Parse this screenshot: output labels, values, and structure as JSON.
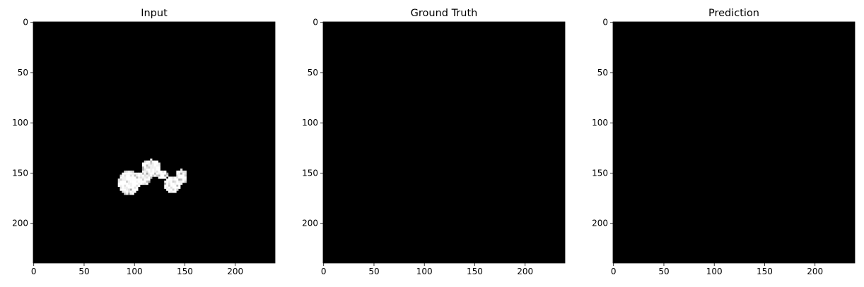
{
  "figure": {
    "background": "#ffffff",
    "panel_fill": "#000000",
    "panels": [
      {
        "title": "Input",
        "has_blob": true
      },
      {
        "title": "Ground Truth",
        "has_blob": false
      },
      {
        "title": "Prediction",
        "has_blob": false
      }
    ],
    "x_ticks": [
      {
        "value": 0,
        "label": "0"
      },
      {
        "value": 50,
        "label": "50"
      },
      {
        "value": 100,
        "label": "100"
      },
      {
        "value": 150,
        "label": "150"
      },
      {
        "value": 200,
        "label": "200"
      }
    ],
    "y_ticks": [
      {
        "value": 0,
        "label": "0"
      },
      {
        "value": 50,
        "label": "50"
      },
      {
        "value": 100,
        "label": "100"
      },
      {
        "value": 150,
        "label": "150"
      },
      {
        "value": 200,
        "label": "200"
      }
    ],
    "image_extent": [
      0,
      240
    ],
    "blob_colors": [
      "#ffffff",
      "#f2f2f2",
      "#e2e2e2",
      "#cfcfcf",
      "#bdbdbd",
      "#a8a8a8"
    ]
  }
}
